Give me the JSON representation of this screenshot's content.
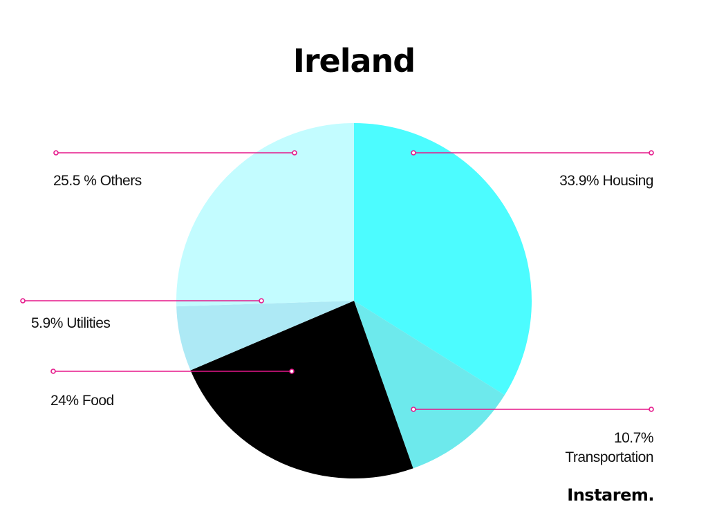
{
  "chart_data": {
    "type": "pie",
    "title": "Ireland",
    "slices": [
      {
        "name": "Housing",
        "value": 33.9,
        "color": "#4cfcff",
        "label": "33.9% Housing"
      },
      {
        "name": "Transportation",
        "value": 10.7,
        "color": "#6de9ec",
        "label_line1": "10.7%",
        "label_line2": "Transportation"
      },
      {
        "name": "Food",
        "value": 24,
        "color": "#000000",
        "label": "24% Food"
      },
      {
        "name": "Utilities",
        "value": 5.9,
        "color": "#ade9f5",
        "label": "5.9% Utilities"
      },
      {
        "name": "Others",
        "value": 25.5,
        "color": "#c3fcff",
        "label": "25.5 % Others"
      }
    ],
    "leader_color": "#e5178a"
  },
  "brand": {
    "logo_text": "Instarem."
  }
}
